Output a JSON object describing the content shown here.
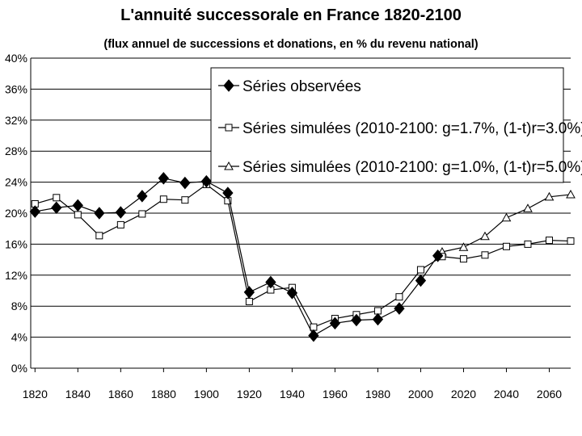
{
  "chart_data": {
    "type": "line",
    "title": "L'annuité successorale en France 1820-2100",
    "subtitle": "(flux annuel de successions et donations, en % du revenu national)",
    "xlabel": "",
    "ylabel": "",
    "xlim": [
      1818,
      2070
    ],
    "ylim": [
      0,
      40
    ],
    "x_ticks": [
      1820,
      1840,
      1860,
      1880,
      1900,
      1920,
      1940,
      1960,
      1980,
      2000,
      2020,
      2040,
      2060
    ],
    "x_tick_labels": [
      "1820",
      "1840",
      "1860",
      "1880",
      "1900",
      "1920",
      "1940",
      "1960",
      "1980",
      "2000",
      "2020",
      "2040",
      "2060"
    ],
    "y_ticks": [
      0,
      4,
      8,
      12,
      16,
      20,
      24,
      28,
      32,
      36,
      40
    ],
    "y_tick_labels": [
      "0%",
      "4%",
      "8%",
      "12%",
      "16%",
      "20%",
      "24%",
      "28%",
      "32%",
      "36%",
      "40%"
    ],
    "grid": "horizontal",
    "legend_position": "top-right",
    "series": [
      {
        "name": "Séries observées",
        "marker": "diamond-filled",
        "x": [
          1820,
          1830,
          1840,
          1850,
          1860,
          1870,
          1880,
          1890,
          1900,
          1910,
          1920,
          1930,
          1940,
          1950,
          1960,
          1970,
          1980,
          1990,
          2000,
          2008
        ],
        "values": [
          20.2,
          20.7,
          21.0,
          20.0,
          20.1,
          22.2,
          24.5,
          23.9,
          24.1,
          22.6,
          9.8,
          11.1,
          9.7,
          4.2,
          5.8,
          6.2,
          6.3,
          7.7,
          11.3,
          14.5
        ]
      },
      {
        "name": "Séries simulées (2010-2100: g=1.7%, (1-t)r=3.0%)",
        "marker": "square-open",
        "x": [
          1820,
          1830,
          1840,
          1850,
          1860,
          1870,
          1880,
          1890,
          1900,
          1910,
          1920,
          1930,
          1940,
          1950,
          1960,
          1970,
          1980,
          1990,
          2000,
          2010,
          2020,
          2030,
          2040,
          2050,
          2060,
          2070
        ],
        "values": [
          21.2,
          22.0,
          19.8,
          17.1,
          18.5,
          19.9,
          21.8,
          21.7,
          23.7,
          21.6,
          8.6,
          10.1,
          10.4,
          5.3,
          6.4,
          6.9,
          7.4,
          9.2,
          12.7,
          14.4,
          14.1,
          14.6,
          15.7,
          16.0,
          16.5,
          16.4
        ]
      },
      {
        "name": "Séries simulées (2010-2100: g=1.0%, (1-t)r=5.0%)",
        "marker": "triangle-open",
        "x": [
          2010,
          2020,
          2030,
          2040,
          2050,
          2060,
          2070
        ],
        "values": [
          15.0,
          15.6,
          17.0,
          19.4,
          20.6,
          22.1,
          22.4
        ]
      }
    ]
  }
}
